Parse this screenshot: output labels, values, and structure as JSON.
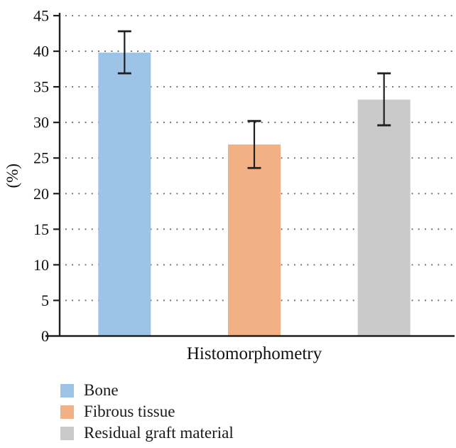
{
  "chart_data": {
    "type": "bar",
    "title": "",
    "xlabel": "Histomorphometry",
    "ylabel": "(%)",
    "ylim": [
      0,
      45
    ],
    "ytick_interval": 5,
    "yticks": [
      0,
      5,
      10,
      15,
      20,
      25,
      30,
      35,
      40,
      45
    ],
    "grid": {
      "horizontal": true,
      "style": "dotted",
      "color": "#5f5f5f"
    },
    "legend_position": "bottom-left",
    "categories": [
      "Bone",
      "Fibrous tissue",
      "Residual graft material"
    ],
    "series": [
      {
        "name": "Bone",
        "value": 39.8,
        "error_plus": 3.0,
        "error_minus": 2.9,
        "color": "#9DC3E6"
      },
      {
        "name": "Fibrous tissue",
        "value": 26.9,
        "error_plus": 3.3,
        "error_minus": 3.3,
        "color": "#F2B184"
      },
      {
        "name": "Residual graft material",
        "value": 33.2,
        "error_plus": 3.7,
        "error_minus": 3.6,
        "color": "#CACACA"
      }
    ],
    "axis_color": "#1f1f1f",
    "error_bar_color": "#1f1f1f"
  }
}
